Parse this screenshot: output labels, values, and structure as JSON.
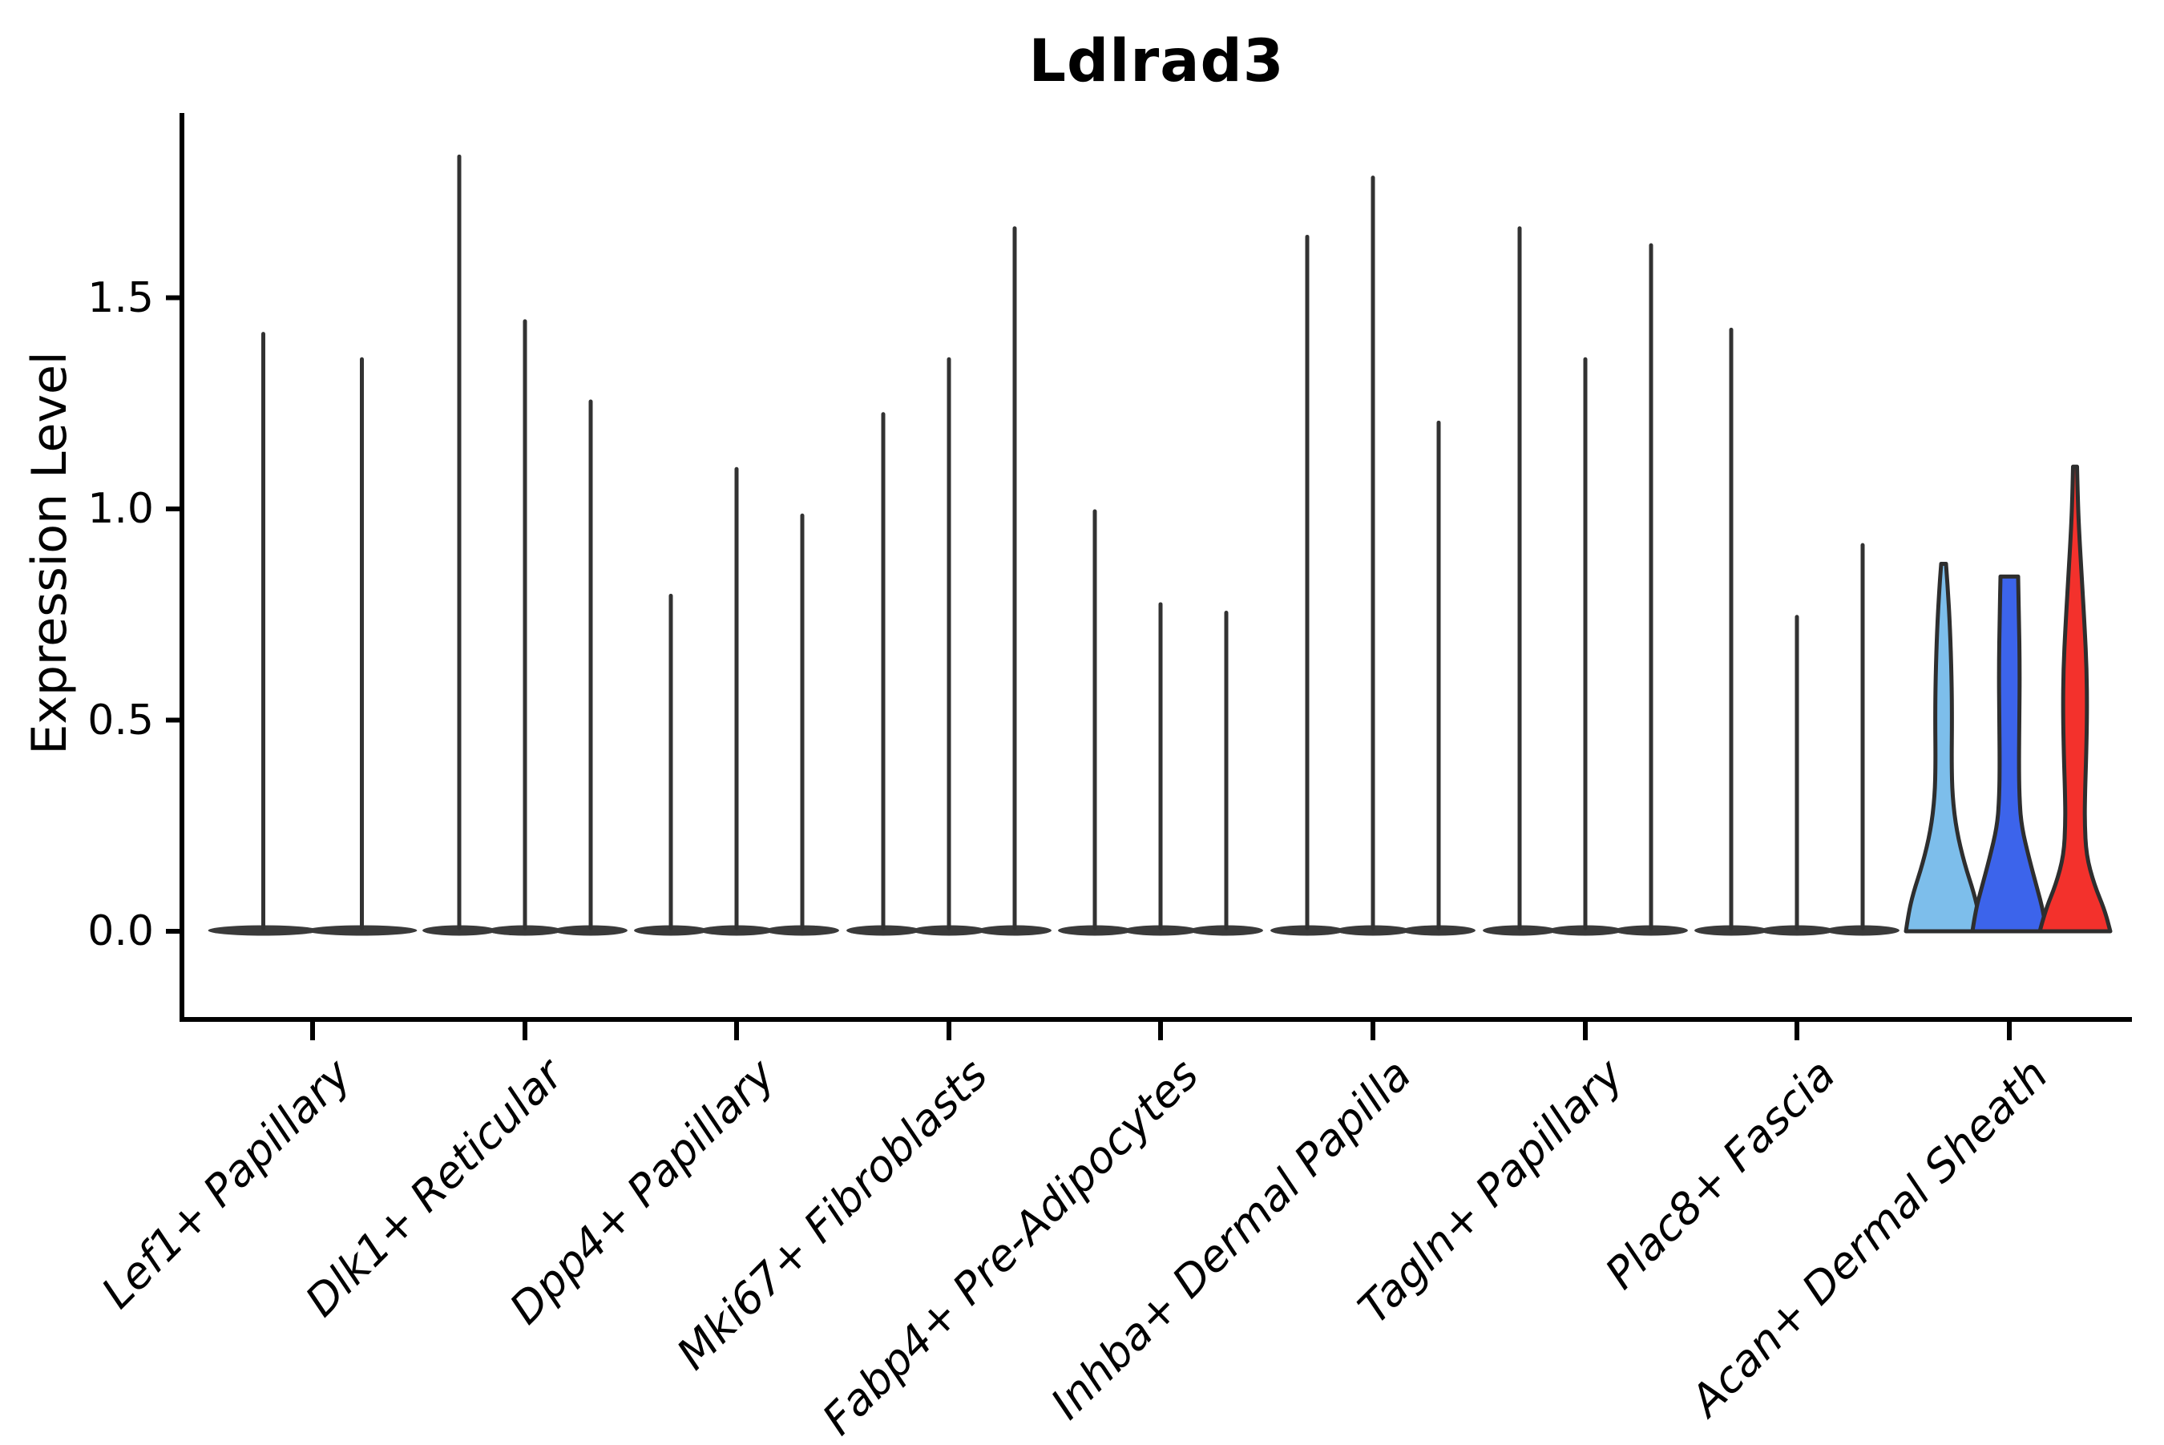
{
  "title": "Ldlrad3",
  "y_axis": {
    "label": "Expression Level",
    "ticks": [
      {
        "label": "0.0",
        "value": 0.0
      },
      {
        "label": "0.5",
        "value": 0.5
      },
      {
        "label": "1.0",
        "value": 1.0
      },
      {
        "label": "1.5",
        "value": 1.5
      }
    ]
  },
  "colors": {
    "background": "#ffffff",
    "axis": "#000000",
    "text": "#000000",
    "spike": "#323232",
    "base_blob": "#3a3a3a",
    "violin_outline": "#2e2e2e",
    "split_fills": [
      "#7DBEEB",
      "#3C64EB",
      "#F3312C"
    ]
  },
  "chart_data": {
    "type": "violin",
    "title": "Ldlrad3",
    "xlabel": "",
    "ylabel": "Expression Level",
    "ylim": [
      -0.21,
      1.94
    ],
    "grid": false,
    "legend": "none",
    "categories": [
      "Lef1+ Papillary",
      "Dlk1+ Reticular",
      "Dpp4+ Papillary",
      "Mki67+ Fibroblasts",
      "Fabp4+ Pre-Adipocytes",
      "Inhba+ Dermal Papilla",
      "Tagln+ Papillary",
      "Plac8+ Fascia",
      "Acan+ Dermal Sheath"
    ],
    "groups": [
      {
        "category": "Lef1+ Papillary",
        "violins": [
          {
            "max": 1.42
          },
          {
            "max": 1.36
          }
        ]
      },
      {
        "category": "Dlk1+ Reticular",
        "violins": [
          {
            "max": 1.84
          },
          {
            "max": 1.45
          },
          {
            "max": 1.26
          }
        ]
      },
      {
        "category": "Dpp4+ Papillary",
        "violins": [
          {
            "max": 0.8
          },
          {
            "max": 1.1
          },
          {
            "max": 0.99
          }
        ]
      },
      {
        "category": "Mki67+ Fibroblasts",
        "violins": [
          {
            "max": 1.23
          },
          {
            "max": 1.36
          },
          {
            "max": 1.67
          }
        ]
      },
      {
        "category": "Fabp4+ Pre-Adipocytes",
        "violins": [
          {
            "max": 1.0
          },
          {
            "max": 0.78
          },
          {
            "max": 0.76
          }
        ]
      },
      {
        "category": "Inhba+ Dermal Papilla",
        "violins": [
          {
            "max": 1.65
          },
          {
            "max": 1.79
          },
          {
            "max": 1.21
          }
        ]
      },
      {
        "category": "Tagln+ Papillary",
        "violins": [
          {
            "max": 1.67
          },
          {
            "max": 1.36
          },
          {
            "max": 1.63
          }
        ]
      },
      {
        "category": "Plac8+ Fascia",
        "violins": [
          {
            "max": 1.43
          },
          {
            "max": 0.75
          },
          {
            "max": 0.92
          }
        ]
      },
      {
        "category": "Acan+ Dermal Sheath",
        "violins": [
          {
            "max": 0.87,
            "fill": "#7DBEEB",
            "profile": [
              [
                0.87,
                3
              ],
              [
                0.82,
                5
              ],
              [
                0.72,
                8
              ],
              [
                0.6,
                10
              ],
              [
                0.5,
                10.5
              ],
              [
                0.4,
                10
              ],
              [
                0.32,
                11
              ],
              [
                0.24,
                16
              ],
              [
                0.16,
                26
              ],
              [
                0.09,
                38
              ],
              [
                0.04,
                44
              ],
              [
                0.0,
                47
              ]
            ]
          },
          {
            "max": 0.84,
            "fill": "#3C64EB",
            "flat_top": true,
            "profile": [
              [
                0.84,
                11
              ],
              [
                0.75,
                12
              ],
              [
                0.62,
                13
              ],
              [
                0.5,
                12.5
              ],
              [
                0.4,
                12
              ],
              [
                0.32,
                12.5
              ],
              [
                0.25,
                15
              ],
              [
                0.17,
                25
              ],
              [
                0.1,
                35
              ],
              [
                0.05,
                42
              ],
              [
                0.0,
                46
              ]
            ]
          },
          {
            "max": 1.1,
            "fill": "#F3312C",
            "profile": [
              [
                1.1,
                2.5
              ],
              [
                1.02,
                3.5
              ],
              [
                0.95,
                5
              ],
              [
                0.85,
                8
              ],
              [
                0.72,
                12
              ],
              [
                0.62,
                14.5
              ],
              [
                0.52,
                15
              ],
              [
                0.42,
                14
              ],
              [
                0.33,
                12.5
              ],
              [
                0.26,
                12
              ],
              [
                0.18,
                14
              ],
              [
                0.11,
                24
              ],
              [
                0.05,
                37
              ],
              [
                0.0,
                44
              ]
            ]
          }
        ]
      }
    ]
  }
}
